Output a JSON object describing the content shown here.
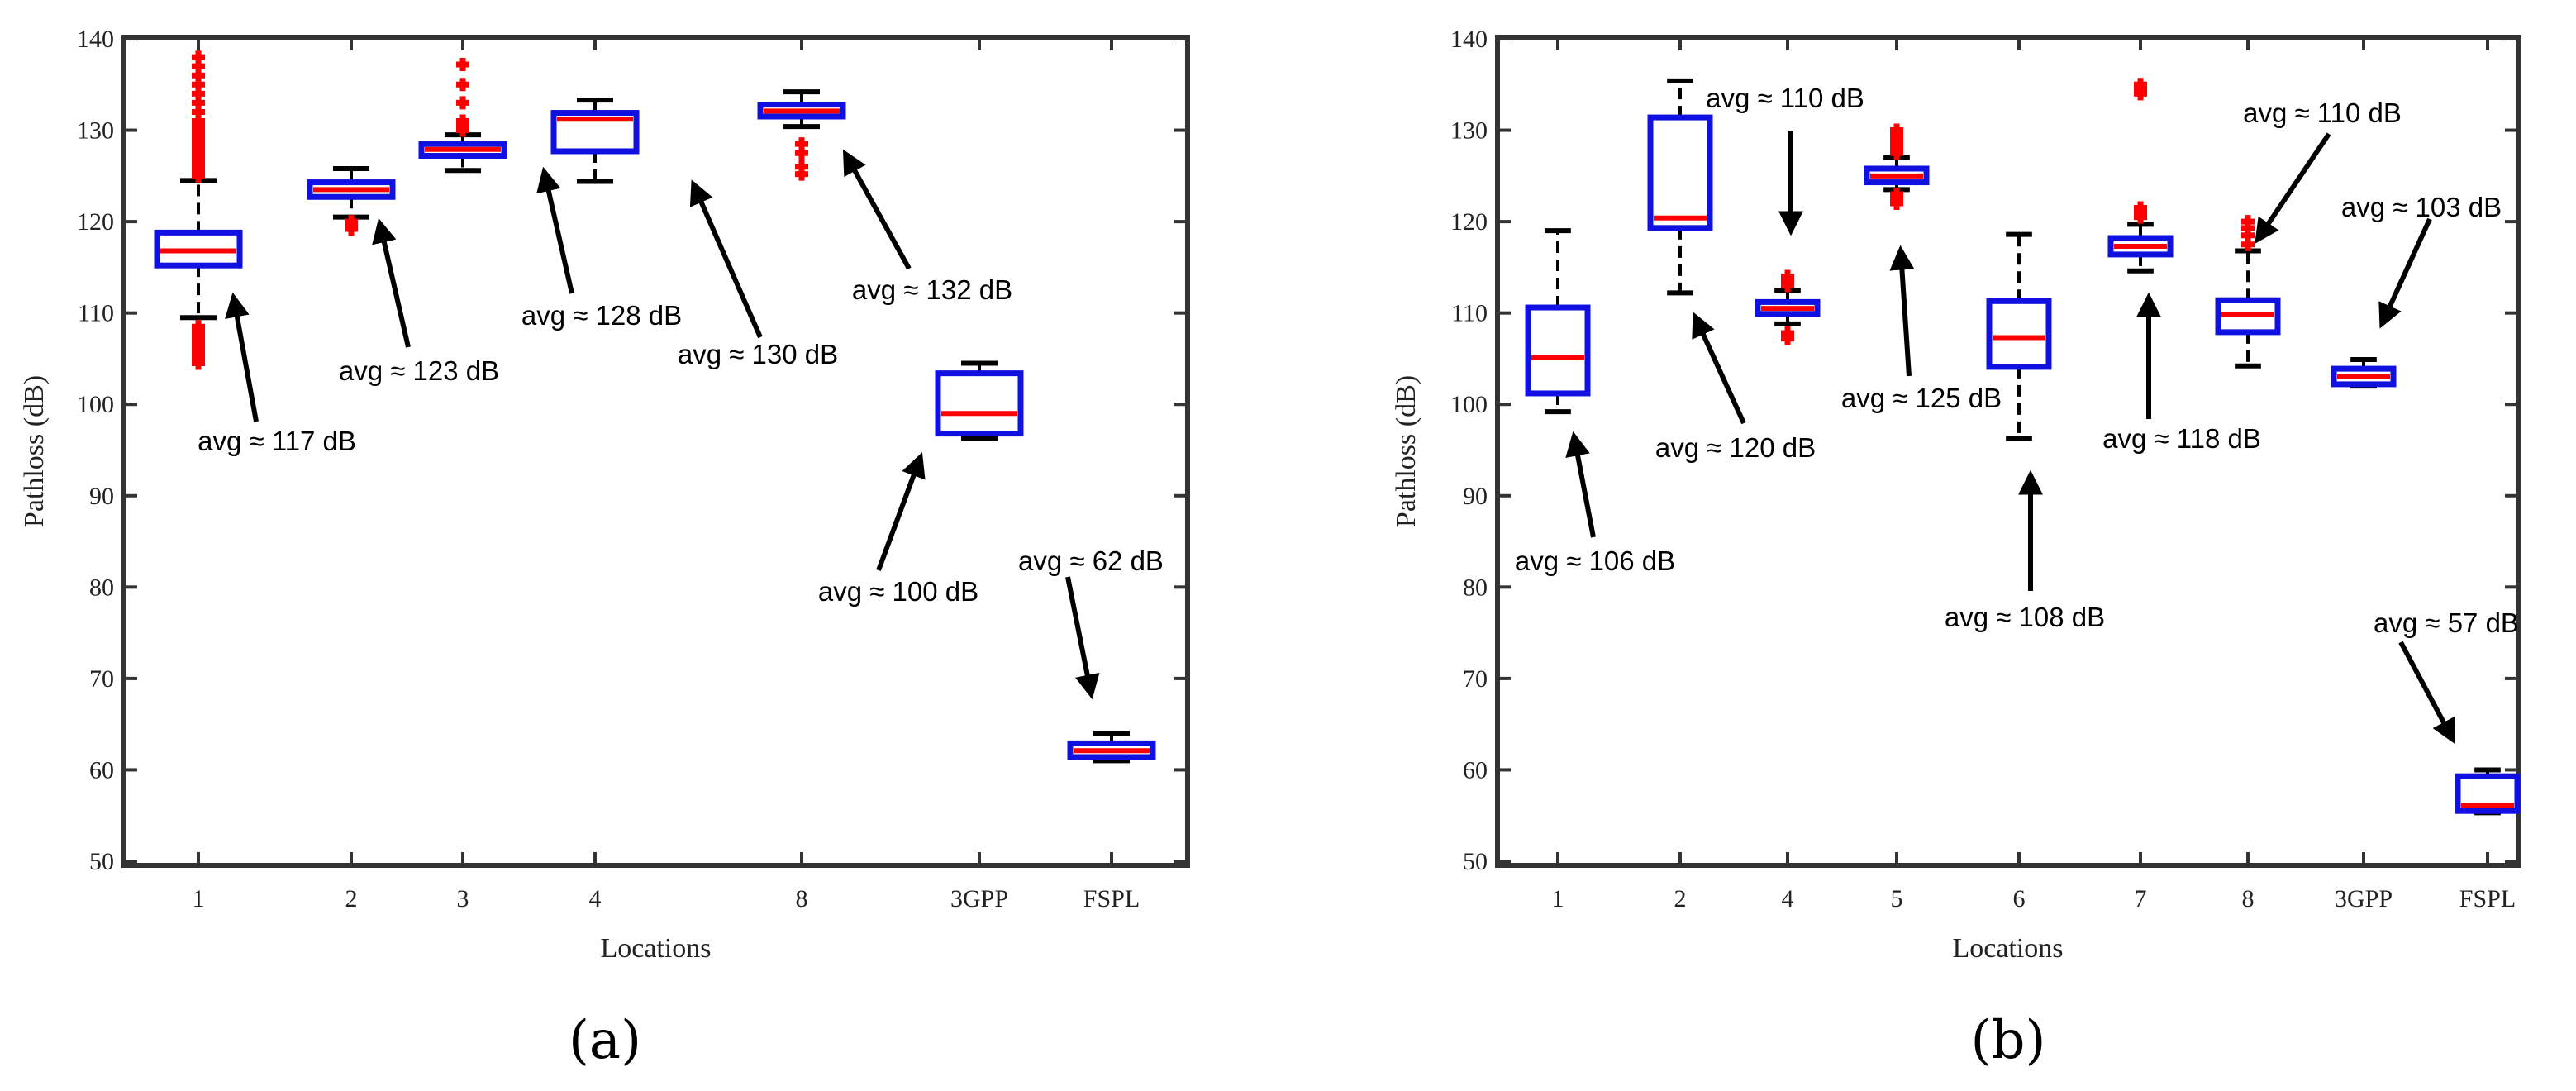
{
  "chart_data": [
    {
      "type": "box",
      "panel_label": "(a)",
      "xlabel": "Locations",
      "ylabel": "Pathloss (dB)",
      "ylim": [
        50,
        140
      ],
      "yticks": [
        50,
        60,
        70,
        80,
        90,
        100,
        110,
        120,
        130,
        140
      ],
      "categories": [
        "1",
        "2",
        "3",
        "4",
        "8",
        "3GPP",
        "FSPL"
      ],
      "boxes": [
        {
          "category": "1",
          "whisker_low": 109.5,
          "q1": 115.2,
          "median": 116.8,
          "q3": 118.8,
          "whisker_high": 124.5,
          "outliers": [
            104.5,
            105,
            105.5,
            106,
            106.5,
            107,
            107.5,
            108,
            108.5,
            125,
            125.5,
            126,
            126.5,
            127,
            127.5,
            128,
            128.5,
            129,
            129.5,
            130,
            130.5,
            131,
            132,
            133,
            134,
            135,
            136,
            137,
            138
          ]
        },
        {
          "category": "2",
          "whisker_low": 120.5,
          "q1": 122.7,
          "median": 123.5,
          "q3": 124.3,
          "whisker_high": 125.8,
          "outliers": [
            119.2,
            119.6,
            120
          ]
        },
        {
          "category": "3",
          "whisker_low": 125.6,
          "q1": 127.2,
          "median": 127.9,
          "q3": 128.5,
          "whisker_high": 129.5,
          "outliers": [
            130,
            130.5,
            131,
            133,
            135,
            137.2
          ]
        },
        {
          "category": "4",
          "whisker_low": 124.4,
          "q1": 127.7,
          "median": 131.2,
          "q3": 131.9,
          "whisker_high": 133.3,
          "outliers": []
        },
        {
          "category": "8",
          "whisker_low": 130.4,
          "q1": 131.5,
          "median": 132.1,
          "q3": 132.8,
          "whisker_high": 134.2,
          "outliers": [
            125.2,
            126,
            127.5,
            128.5
          ]
        },
        {
          "category": "3GPP",
          "whisker_low": 96.3,
          "q1": 96.8,
          "median": 99,
          "q3": 103.4,
          "whisker_high": 104.5,
          "outliers": []
        },
        {
          "category": "FSPL",
          "whisker_low": 61,
          "q1": 61.4,
          "median": 62.1,
          "q3": 62.9,
          "whisker_high": 64,
          "outliers": []
        }
      ],
      "annotations": [
        {
          "text": "avg ≈ 117 dB",
          "category_index": 0,
          "value": 117
        },
        {
          "text": "avg ≈ 123 dB",
          "category_index": 1,
          "value": 123
        },
        {
          "text": "avg ≈ 128 dB",
          "category_index": 2,
          "value": 128
        },
        {
          "text": "avg ≈ 130 dB",
          "category_index": 3,
          "value": 130
        },
        {
          "text": "avg ≈ 132 dB",
          "category_index": 4,
          "value": 132
        },
        {
          "text": "avg ≈ 100 dB",
          "category_index": 5,
          "value": 100
        },
        {
          "text": "avg ≈ 62 dB",
          "category_index": 6,
          "value": 62
        }
      ]
    },
    {
      "type": "box",
      "panel_label": "(b)",
      "xlabel": "Locations",
      "ylabel": "Pathloss (dB)",
      "ylim": [
        50,
        140
      ],
      "yticks": [
        50,
        60,
        70,
        80,
        90,
        100,
        110,
        120,
        130,
        140
      ],
      "categories": [
        "1",
        "2",
        "4",
        "5",
        "6",
        "7",
        "8",
        "3GPP",
        "FSPL"
      ],
      "boxes": [
        {
          "category": "1",
          "whisker_low": 99.2,
          "q1": 101.2,
          "median": 105.1,
          "q3": 110.6,
          "whisker_high": 119,
          "outliers": []
        },
        {
          "category": "2",
          "whisker_low": 112.2,
          "q1": 119.3,
          "median": 120.4,
          "q3": 131.4,
          "whisker_high": 135.4,
          "outliers": []
        },
        {
          "category": "4",
          "whisker_low": 108.8,
          "q1": 109.9,
          "median": 110.5,
          "q3": 111.2,
          "whisker_high": 112.5,
          "outliers": [
            107.2,
            107.8,
            113,
            113.5,
            114
          ]
        },
        {
          "category": "5",
          "whisker_low": 123.5,
          "q1": 124.3,
          "median": 125,
          "q3": 125.8,
          "whisker_high": 127,
          "outliers": [
            122,
            122.5,
            123,
            127.5,
            128,
            128.5,
            129,
            129.5,
            130
          ]
        },
        {
          "category": "6",
          "whisker_low": 96.3,
          "q1": 104.1,
          "median": 107.3,
          "q3": 111.3,
          "whisker_high": 118.6,
          "outliers": []
        },
        {
          "category": "7",
          "whisker_low": 114.6,
          "q1": 116.4,
          "median": 117.3,
          "q3": 118.2,
          "whisker_high": 119.7,
          "outliers": [
            120.5,
            121,
            121.5,
            134,
            134.5,
            135
          ]
        },
        {
          "category": "8",
          "whisker_low": 104.2,
          "q1": 107.9,
          "median": 109.8,
          "q3": 111.4,
          "whisker_high": 116.8,
          "outliers": [
            117.5,
            118.5,
            119.3,
            120
          ]
        },
        {
          "category": "3GPP",
          "whisker_low": 102,
          "q1": 102.2,
          "median": 103,
          "q3": 103.9,
          "whisker_high": 104.9,
          "outliers": []
        },
        {
          "category": "FSPL",
          "whisker_low": 55.3,
          "q1": 55.5,
          "median": 56.1,
          "q3": 59.3,
          "whisker_high": 60,
          "outliers": []
        }
      ],
      "annotations": [
        {
          "text": "avg ≈ 106 dB",
          "category_index": 0,
          "value": 106
        },
        {
          "text": "avg ≈ 120 dB",
          "category_index": 1,
          "value": 120
        },
        {
          "text": "avg ≈ 110 dB",
          "category_index": 2,
          "value": 110
        },
        {
          "text": "avg ≈ 125 dB",
          "category_index": 3,
          "value": 125
        },
        {
          "text": "avg ≈ 108 dB",
          "category_index": 4,
          "value": 108
        },
        {
          "text": "avg ≈ 118 dB",
          "category_index": 5,
          "value": 118
        },
        {
          "text": "avg ≈ 110 dB",
          "category_index": 6,
          "value": 110
        },
        {
          "text": "avg ≈ 103 dB",
          "category_index": 7,
          "value": 103
        },
        {
          "text": "avg ≈ 57 dB",
          "category_index": 8,
          "value": 57
        }
      ]
    }
  ],
  "colors": {
    "box": "#1010e0",
    "median": "#ff0000",
    "outlier": "#ff0000",
    "whisker": "#000000",
    "axis": "#333333",
    "arrow": "#000000"
  }
}
